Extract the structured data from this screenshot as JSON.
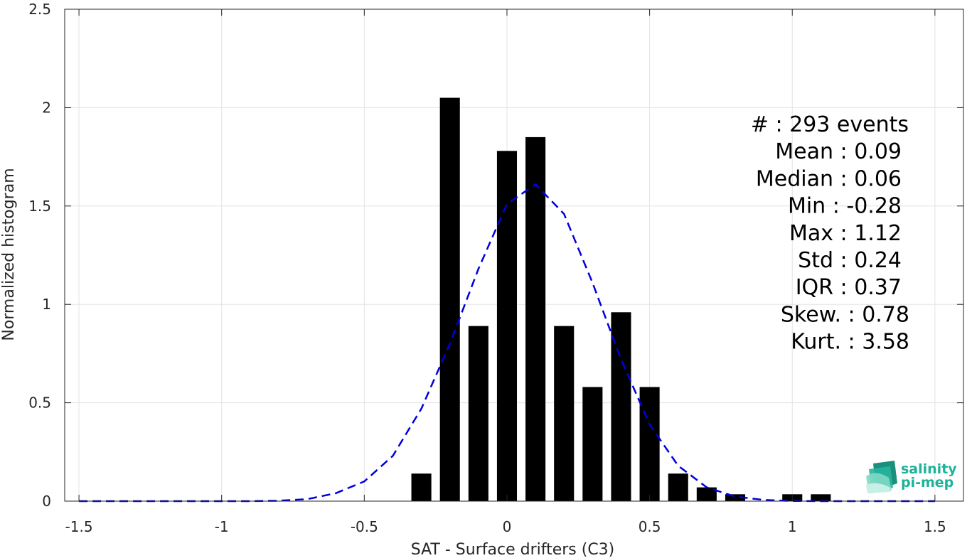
{
  "chart_data": {
    "type": "bar",
    "xlabel": "SAT - Surface drifters (C3)",
    "ylabel": "Normalized histogram",
    "xlim": [
      -1.55,
      1.6
    ],
    "ylim": [
      0,
      2.5
    ],
    "xticks": [
      -1.5,
      -1,
      -0.5,
      0,
      0.5,
      1,
      1.5
    ],
    "xtick_labels": [
      "-1.5",
      "-1",
      "-0.5",
      "0",
      "0.5",
      "1",
      "1.5"
    ],
    "yticks": [
      0,
      0.5,
      1,
      1.5,
      2,
      2.5
    ],
    "ytick_labels": [
      "0",
      "0.5",
      "1",
      "1.5",
      "2",
      "2.5"
    ],
    "grid": true,
    "bar_color": "#000000",
    "bar_width": 0.07,
    "bars": {
      "x": [
        -0.3,
        -0.2,
        -0.1,
        0.0,
        0.1,
        0.2,
        0.3,
        0.4,
        0.5,
        0.6,
        0.7,
        0.8,
        0.9,
        1.0,
        1.1
      ],
      "values": [
        0.14,
        2.05,
        0.89,
        1.78,
        1.85,
        0.89,
        0.58,
        0.96,
        0.58,
        0.14,
        0.07,
        0.035,
        0,
        0.035,
        0.035
      ]
    },
    "fit_curve": {
      "style": "dashed",
      "color": "#0000dd",
      "x": [
        -1.5,
        -1.4,
        -1.3,
        -1.2,
        -1.1,
        -1.0,
        -0.9,
        -0.8,
        -0.7,
        -0.6,
        -0.5,
        -0.4,
        -0.3,
        -0.2,
        -0.1,
        0.0,
        0.1,
        0.2,
        0.3,
        0.4,
        0.5,
        0.6,
        0.7,
        0.8,
        0.9,
        1.0,
        1.1,
        1.2,
        1.3,
        1.4,
        1.5
      ],
      "y": [
        0,
        0,
        0,
        0,
        0,
        0,
        0,
        0.002,
        0.01,
        0.04,
        0.1,
        0.23,
        0.47,
        0.8,
        1.18,
        1.51,
        1.61,
        1.46,
        1.11,
        0.72,
        0.39,
        0.18,
        0.07,
        0.023,
        0.006,
        0.001,
        0,
        0,
        0,
        0,
        0
      ]
    },
    "stats_lines": [
      "#  : 293 events",
      "Mean : 0.09",
      "Median : 0.06",
      "Min : -0.28",
      "Max : 1.12",
      "Std : 0.24",
      "IQR : 0.37",
      "Skew. : 0.78",
      "Kurt. : 3.58"
    ]
  },
  "logo": {
    "line1": "salinity",
    "line2": "pi-mep",
    "color": "#1bb39a"
  }
}
